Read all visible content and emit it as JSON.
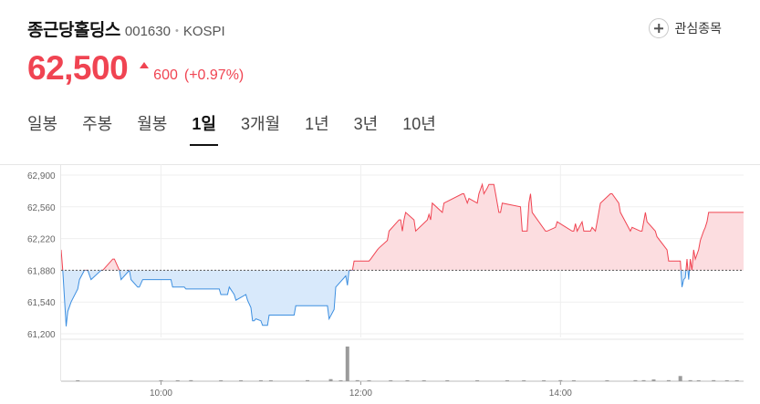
{
  "stock": {
    "name": "종근당홀딩스",
    "code": "001630",
    "market": "KOSPI"
  },
  "watchlist": {
    "label": "관심종목"
  },
  "price": {
    "current": "62,500",
    "change": "600",
    "change_rate": "(+0.97%)"
  },
  "tabs": [
    {
      "label": "일봉",
      "active": false
    },
    {
      "label": "주봉",
      "active": false
    },
    {
      "label": "월봉",
      "active": false
    },
    {
      "label": "1일",
      "active": true
    },
    {
      "label": "3개월",
      "active": false
    },
    {
      "label": "1년",
      "active": false
    },
    {
      "label": "3년",
      "active": false
    },
    {
      "label": "10년",
      "active": false
    }
  ],
  "colors": {
    "up": "#f04452",
    "down": "#3d8fe0",
    "up_fill": "#fcdde0",
    "down_fill": "#d8e9fb"
  },
  "chart_data": {
    "type": "area",
    "baseline": 61880,
    "ylim": [
      61200,
      62900
    ],
    "ytick_labels": [
      "62,900",
      "62,560",
      "62,220",
      "61,880",
      "61,540",
      "61,200"
    ],
    "yticks": [
      62900,
      62560,
      62220,
      61880,
      61540,
      61200
    ],
    "xtick_labels": [
      "10:00",
      "12:00",
      "14:00"
    ],
    "xticks": [
      60,
      180,
      300
    ],
    "xlim": [
      0,
      410
    ],
    "series": [
      {
        "x": [
          0,
          1,
          3,
          4,
          6,
          10,
          11,
          14,
          15,
          16,
          18,
          24,
          25,
          31,
          32,
          35,
          36,
          41,
          42,
          46,
          47,
          49,
          50,
          51,
          52,
          58,
          59,
          61,
          62,
          66,
          67,
          74,
          75,
          95,
          96,
          100,
          101,
          104,
          105,
          111,
          112,
          114,
          115,
          116,
          117,
          120,
          121,
          124,
          125,
          140,
          141,
          160,
          161,
          164,
          165,
          171,
          172,
          173,
          174,
          175,
          176,
          185,
          186,
          190,
          191,
          196,
          197,
          202,
          203,
          204,
          205,
          206,
          207,
          212,
          213,
          220,
          221,
          222,
          223,
          229,
          230,
          241,
          242,
          244,
          245,
          250,
          251,
          253,
          254,
          256,
          257,
          260,
          261,
          262,
          263,
          264,
          265,
          276,
          277,
          280,
          281,
          282,
          283,
          291,
          292,
          297,
          298,
          307,
          308,
          309,
          310,
          313,
          314,
          318,
          319,
          321,
          322,
          323,
          324,
          330,
          331,
          335,
          336,
          342,
          343,
          348,
          349,
          351,
          352,
          357,
          358,
          364,
          365,
          372,
          373,
          374,
          375,
          376,
          377,
          378,
          379,
          380,
          381,
          383,
          384,
          386,
          387,
          388,
          389,
          392,
          393,
          410
        ],
        "y": [
          62100,
          61880,
          61280,
          61440,
          61540,
          61680,
          61780,
          61880,
          61880,
          61880,
          61780,
          61880,
          61880,
          62000,
          62000,
          61880,
          61780,
          61880,
          61780,
          61700,
          61700,
          61780,
          61780,
          61780,
          61780,
          61780,
          61780,
          61780,
          61780,
          61780,
          61700,
          61700,
          61680,
          61680,
          61620,
          61620,
          61700,
          61620,
          61560,
          61620,
          61560,
          61480,
          61340,
          61340,
          61360,
          61340,
          61290,
          61290,
          61400,
          61400,
          61500,
          61500,
          61360,
          61460,
          61700,
          61820,
          61720,
          61880,
          61880,
          61880,
          61980,
          61980,
          62000,
          62100,
          62120,
          62200,
          62300,
          62400,
          62420,
          62420,
          62300,
          62420,
          62500,
          62420,
          62300,
          62420,
          62480,
          62420,
          62600,
          62500,
          62600,
          62700,
          62700,
          62600,
          62650,
          62600,
          62700,
          62800,
          62700,
          62760,
          62800,
          62800,
          62700,
          62600,
          62500,
          62500,
          62600,
          62560,
          62300,
          62300,
          62600,
          62700,
          62500,
          62300,
          62300,
          62340,
          62400,
          62300,
          62300,
          62380,
          62300,
          62400,
          62300,
          62300,
          62340,
          62300,
          62400,
          62500,
          62600,
          62700,
          62700,
          62600,
          62500,
          62300,
          62340,
          62300,
          62300,
          62500,
          62400,
          62300,
          62240,
          62100,
          61980,
          61980,
          61700,
          61780,
          61800,
          62000,
          61780,
          62000,
          61880,
          62100,
          62000,
          62100,
          62200,
          62300,
          62340,
          62400,
          62500,
          62500,
          62500,
          62500
        ]
      }
    ],
    "volume": {
      "x": [
        10,
        60,
        70,
        78,
        96,
        108,
        120,
        126,
        148,
        162,
        168,
        172,
        178,
        185,
        198,
        208,
        218,
        232,
        250,
        268,
        278,
        290,
        300,
        308,
        328,
        345,
        350,
        356,
        365,
        372,
        378,
        383,
        392,
        400,
        406
      ],
      "y": [
        2,
        1,
        1,
        3,
        1,
        1,
        2,
        1,
        3,
        6,
        1,
        100,
        3,
        1,
        2,
        1,
        1,
        1,
        1,
        2,
        1,
        1,
        3,
        1,
        1,
        3,
        3,
        5,
        3,
        15,
        3,
        1,
        3,
        1,
        2
      ]
    }
  }
}
